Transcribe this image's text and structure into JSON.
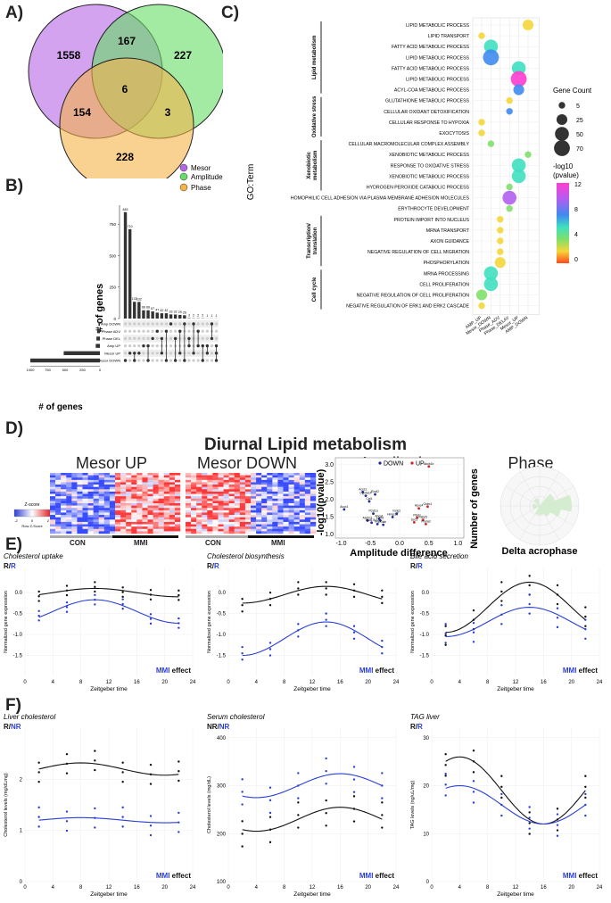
{
  "panels": {
    "a": "A)",
    "b": "B)",
    "c": "C)",
    "d": "D)",
    "e": "E)",
    "f": "F)"
  },
  "venn": {
    "counts": {
      "mesor_only": "1558",
      "mesor_amp": "167",
      "amp_only": "227",
      "center": "6",
      "mesor_phase": "154",
      "amp_phase": "3",
      "phase_only": "228"
    },
    "legend": [
      {
        "label": "Mesor",
        "color": "#b565e6"
      },
      {
        "label": "Amplitude",
        "color": "#66dd66"
      },
      {
        "label": "Phase",
        "color": "#f5b347"
      }
    ]
  },
  "upset": {
    "ylabel": "# of genes",
    "xlabel": "# of genes",
    "yticks": [
      "0",
      "250",
      "500",
      "750"
    ],
    "xticks": [
      "1000",
      "750",
      "500",
      "250",
      "0"
    ],
    "sets": [
      {
        "name": "Amp DOWN",
        "size": 20
      },
      {
        "name": "Phase ADV",
        "size": 40
      },
      {
        "name": "Phase DEL",
        "size": 50
      },
      {
        "name": "Amp UP",
        "size": 60
      },
      {
        "name": "Mesor UP",
        "size": 520
      },
      {
        "name": "Mesor DOWN",
        "size": 1000
      }
    ],
    "bars": [
      845,
      710,
      133,
      132,
      66,
      66,
      57,
      47,
      42,
      42,
      33,
      32,
      29,
      26,
      3,
      2,
      2,
      2,
      1,
      1,
      1
    ],
    "bar_labels": [
      "845",
      "710",
      "133",
      "132",
      "66",
      "66",
      "57",
      "47",
      "42",
      "42",
      "33",
      "32",
      "29",
      "26",
      "3",
      "2",
      "2",
      "2",
      "1",
      "1",
      "1"
    ]
  },
  "go": {
    "ylabel": "GO:Term",
    "terms": [
      "LIPID METABOLIC PROCESS",
      "LIPID TRANSPORT",
      "FATTY ACID METABOLIC PROCESS",
      "LIPID METABOLIC PROCESS",
      "FATTY ACID METABOLIC PROCESS",
      "LIPID METABOLIC PROCESS",
      "ACYL-COA METABOLIC PROCESS",
      "GLUTATHIONE METABOLIC PROCESS",
      "CELLULAR OXIDANT DETOXIFICATION",
      "CELLULAR RESPONSE TO HYPOXIA",
      "EXOCYTOSIS",
      "CELLULAR MACROMOLECULAR COMPLEX ASSEMBLY",
      "XENOBIOTIC METABOLIC PROCESS",
      "RESPONSE TO OXIDATIVE STRESS",
      "XENOBIOTIC METABOLIC PROCESS",
      "HYDROGEN PEROXIDE CATABOLIC PROCESS",
      "HOMOPHILIC CELL ADHESION VIA PLASMA MEMBRANE ADHESION MOLECULES",
      "ERYTHROCYTE DEVELOPMENT",
      "PROTEIN IMPORT INTO NUCLEUS",
      "MRNA TRANSPORT",
      "AXON GUIDANCE",
      "NEGATIVE REGULATION OF CELL MIGRATION",
      "PHOSPHORYLATION",
      "MRNA PROCESSING",
      "CELL PROLIFERATION",
      "NEGATIVE REGULATION OF CELL PROLIFERATION",
      "NEGATIVE REGULATION OF ERK1 AND ERK2 CASCADE"
    ],
    "groups": [
      {
        "name": "Lipid metabolism",
        "from": 0,
        "to": 6
      },
      {
        "name": "Oxidative stress",
        "from": 7,
        "to": 10
      },
      {
        "name": "Xenobiotic metabolism",
        "from": 11,
        "to": 15
      },
      {
        "name": "Transcription/ translation",
        "from": 18,
        "to": 22
      },
      {
        "name": "Cell cycle",
        "from": 23,
        "to": 26
      }
    ],
    "xcats": [
      "AMP_UP",
      "Mesor_DOWN",
      "Phase_ADV",
      "Phase_DELAY",
      "Mesor_UP",
      "AMP_DOWN"
    ],
    "points": [
      {
        "row": 0,
        "col": 5,
        "size": 25,
        "p": 3
      },
      {
        "row": 1,
        "col": 0,
        "size": 5,
        "p": 3
      },
      {
        "row": 2,
        "col": 1,
        "size": 50,
        "p": 6
      },
      {
        "row": 3,
        "col": 1,
        "size": 70,
        "p": 8.5
      },
      {
        "row": 4,
        "col": 4,
        "size": 50,
        "p": 6
      },
      {
        "row": 5,
        "col": 4,
        "size": 70,
        "p": 11
      },
      {
        "row": 6,
        "col": 4,
        "size": 25,
        "p": 8.5
      },
      {
        "row": 7,
        "col": 3,
        "size": 5,
        "p": 3
      },
      {
        "row": 8,
        "col": 3,
        "size": 5,
        "p": 8
      },
      {
        "row": 9,
        "col": 0,
        "size": 5,
        "p": 3
      },
      {
        "row": 10,
        "col": 0,
        "size": 5,
        "p": 3
      },
      {
        "row": 11,
        "col": 1,
        "size": 5,
        "p": 5
      },
      {
        "row": 12,
        "col": 5,
        "size": 5,
        "p": 5
      },
      {
        "row": 13,
        "col": 4,
        "size": 50,
        "p": 6
      },
      {
        "row": 14,
        "col": 4,
        "size": 50,
        "p": 7
      },
      {
        "row": 15,
        "col": 3,
        "size": 5,
        "p": 5
      },
      {
        "row": 16,
        "col": 3,
        "size": 50,
        "p": 10
      },
      {
        "row": 17,
        "col": 3,
        "size": 5,
        "p": 5
      },
      {
        "row": 18,
        "col": 2,
        "size": 5,
        "p": 3
      },
      {
        "row": 19,
        "col": 2,
        "size": 5,
        "p": 3
      },
      {
        "row": 20,
        "col": 2,
        "size": 5,
        "p": 3
      },
      {
        "row": 21,
        "col": 2,
        "size": 5,
        "p": 3
      },
      {
        "row": 22,
        "col": 2,
        "size": 25,
        "p": 2
      },
      {
        "row": 23,
        "col": 1,
        "size": 50,
        "p": 6
      },
      {
        "row": 24,
        "col": 1,
        "size": 50,
        "p": 6
      },
      {
        "row": 25,
        "col": 0,
        "size": 25,
        "p": 4
      },
      {
        "row": 26,
        "col": 0,
        "size": 5,
        "p": 3
      }
    ],
    "size_legend": {
      "title": "Gene Count",
      "values": [
        "5",
        "25",
        "50",
        "70"
      ]
    },
    "color_legend": {
      "title1": "-log10",
      "title2": "(pvalue)",
      "ticks": [
        "12",
        "8",
        "4",
        "0"
      ]
    }
  },
  "d": {
    "title": "Diurnal Lipid metabolism",
    "mesor_up": "Mesor UP",
    "mesor_down": "Mesor DOWN",
    "amplitude": "Amplitude",
    "phase": "Phase",
    "con": "CON",
    "mmi": "MMI",
    "zscore": {
      "title": "Z-score",
      "sub": "Row Z-Score",
      "ticks": [
        "-2",
        "0",
        "2"
      ]
    },
    "amp_plot": {
      "ylabel": "-log10(pvalue)",
      "xlabel": "Amplitude difference",
      "legend_down": "DOWN",
      "legend_up": "UP",
      "xticks": [
        "-1.0",
        "-0.5",
        "0.0",
        "0.5",
        "1.0"
      ],
      "yticks": [
        "1.0",
        "1.5",
        "2.0",
        "2.5",
        "3.0"
      ],
      "points": [
        {
          "x": -0.95,
          "y": 1.72,
          "t": "down",
          "label": "Acox1"
        },
        {
          "x": -0.63,
          "y": 2.22,
          "t": "down",
          "label": "Acss1"
        },
        {
          "x": -0.58,
          "y": 2.11,
          "t": "down",
          "label": "Cyp4a14"
        },
        {
          "x": -0.42,
          "y": 2.15,
          "t": "down",
          "label": "Elovl2"
        },
        {
          "x": -0.52,
          "y": 1.95,
          "t": "down",
          "label": "Cpt1"
        },
        {
          "x": -0.45,
          "y": 1.6,
          "t": "down",
          "label": "Pcyt1a"
        },
        {
          "x": -0.35,
          "y": 1.45,
          "t": "down",
          "label": "Abca1"
        },
        {
          "x": -0.55,
          "y": 1.4,
          "t": "down",
          "label": "Abcb11"
        },
        {
          "x": -0.33,
          "y": 1.4,
          "t": "down",
          "label": "Lpin1"
        },
        {
          "x": -0.48,
          "y": 1.34,
          "t": "down",
          "label": "Hsd17b7"
        },
        {
          "x": -0.38,
          "y": 1.3,
          "t": "down",
          "label": "Mttp"
        },
        {
          "x": -0.28,
          "y": 1.28,
          "t": "down",
          "label": "Olah"
        },
        {
          "x": -0.12,
          "y": 1.5,
          "t": "down",
          "label": "Hmgcs1"
        },
        {
          "x": -0.05,
          "y": 1.6,
          "t": "down",
          "label": "Insig1"
        },
        {
          "x": 0.5,
          "y": 2.95,
          "t": "up",
          "label": "Abcb1b"
        },
        {
          "x": 0.33,
          "y": 1.75,
          "t": "up",
          "label": "Apoc4"
        },
        {
          "x": 0.48,
          "y": 1.8,
          "t": "up",
          "label": "Gstm1"
        },
        {
          "x": 0.3,
          "y": 1.48,
          "t": "up",
          "label": "Ptgds"
        },
        {
          "x": 0.4,
          "y": 1.42,
          "t": "up",
          "label": "Fabp5"
        },
        {
          "x": 0.25,
          "y": 1.35,
          "t": "up",
          "label": "Scd1"
        },
        {
          "x": 0.45,
          "y": 1.3,
          "t": "up",
          "label": "Pnpla3"
        }
      ]
    },
    "phase_plot": {
      "ylabel": "Number of genes",
      "xlabel": "Delta acrophase"
    }
  },
  "e": [
    {
      "title": "Cholesterol uptake",
      "rr": "R/",
      "rr2": "R",
      "ylabel": "Normalized gene expression",
      "ylim": [
        -2,
        0.5
      ],
      "yticks": [
        "0.0",
        "-0.5",
        "-1.0",
        "-1.5"
      ],
      "effect": "MMI",
      "effect2": "effect"
    },
    {
      "title": "Cholesterol biosynthesis",
      "rr": "R/",
      "rr2": "R",
      "ylabel": "Normalized gene expression",
      "ylim": [
        -2,
        0.5
      ],
      "yticks": [
        "0.0",
        "-0.5",
        "-1.0",
        "-1.5"
      ],
      "effect": "MMI",
      "effect2": "effect"
    },
    {
      "title": "Bile acid secretion",
      "rr": "R/",
      "rr2": "R",
      "ylabel": "Normalized gene expression",
      "ylim": [
        -2,
        0.5
      ],
      "yticks": [
        "0.0",
        "-0.5",
        "-1.0",
        "-1.5"
      ],
      "effect": "MMI",
      "effect2": "effect"
    }
  ],
  "f": [
    {
      "title": "Liver cholesterol",
      "rr": "R/",
      "rr2": "NR",
      "ylabel": "Cholesterol levels (mg/dLmg)",
      "effect": "MMI",
      "effect2": "effect",
      "yticks": [
        "0",
        "1",
        "2"
      ]
    },
    {
      "title": "Serum cholesterol",
      "rr": "NR/",
      "rr2": "NR",
      "ylabel": "Cholesterol levels (mg/dL)",
      "effect": "MMI",
      "effect2": "effect",
      "yticks": [
        "100",
        "200",
        "300",
        "400"
      ]
    },
    {
      "title": "TAG liver",
      "rr": "R/",
      "rr2": "R",
      "ylabel": "TAG levels (ng/uL/mg)",
      "effect": "MMI",
      "effect2": "effect",
      "yticks": [
        "0",
        "10",
        "20",
        "30"
      ]
    }
  ],
  "xaxis": {
    "label": "Zeitgeber time",
    "ticks": [
      "0",
      "4",
      "8",
      "12",
      "16",
      "20",
      "24"
    ]
  },
  "colors": {
    "black": "#111111",
    "blue": "#2a3fd6"
  }
}
